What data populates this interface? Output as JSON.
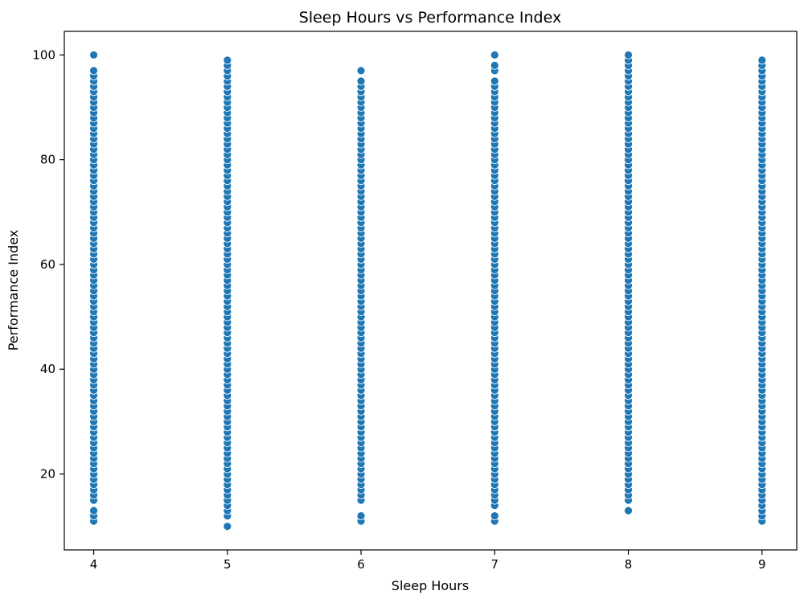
{
  "colors": {
    "marker": "#1f77b4",
    "marker_edge": "#ffffff"
  },
  "chart_data": {
    "type": "scatter",
    "title": "Sleep Hours vs Performance Index",
    "xlabel": "Sleep Hours",
    "ylabel": "Performance Index",
    "xlim": [
      3.78,
      9.26
    ],
    "ylim": [
      5.5,
      104.5
    ],
    "xticks": [
      4,
      5,
      6,
      7,
      8,
      9
    ],
    "xtick_labels": [
      "4",
      "5",
      "6",
      "7",
      "8",
      "9"
    ],
    "yticks": [
      20,
      40,
      60,
      80,
      100
    ],
    "ytick_labels": [
      "20",
      "40",
      "60",
      "80",
      "100"
    ],
    "grid": false,
    "legend": "none",
    "series": [
      {
        "x": 4,
        "y_values": [
          11,
          12,
          13,
          15,
          16,
          17,
          18,
          19,
          20,
          21,
          22,
          23,
          24,
          25,
          26,
          27,
          28,
          29,
          30,
          31,
          32,
          33,
          34,
          35,
          36,
          37,
          38,
          39,
          40,
          41,
          42,
          43,
          44,
          45,
          46,
          47,
          48,
          49,
          50,
          51,
          52,
          53,
          54,
          55,
          56,
          57,
          58,
          59,
          60,
          61,
          62,
          63,
          64,
          65,
          66,
          67,
          68,
          69,
          70,
          71,
          72,
          73,
          74,
          75,
          76,
          77,
          78,
          79,
          80,
          81,
          82,
          83,
          84,
          85,
          86,
          87,
          88,
          89,
          90,
          91,
          92,
          93,
          94,
          95,
          96,
          97,
          100
        ]
      },
      {
        "x": 5,
        "y_values": [
          10,
          12,
          13,
          14,
          15,
          16,
          17,
          18,
          19,
          20,
          21,
          22,
          23,
          24,
          25,
          26,
          27,
          28,
          29,
          30,
          31,
          32,
          33,
          34,
          35,
          36,
          37,
          38,
          39,
          40,
          41,
          42,
          43,
          44,
          45,
          46,
          47,
          48,
          49,
          50,
          51,
          52,
          53,
          54,
          55,
          56,
          57,
          58,
          59,
          60,
          61,
          62,
          63,
          64,
          65,
          66,
          67,
          68,
          69,
          70,
          71,
          72,
          73,
          74,
          75,
          76,
          77,
          78,
          79,
          80,
          81,
          82,
          83,
          84,
          85,
          86,
          87,
          88,
          89,
          90,
          91,
          92,
          93,
          94,
          95,
          96,
          97,
          98,
          99
        ]
      },
      {
        "x": 6,
        "y_values": [
          11,
          12,
          15,
          16,
          17,
          18,
          19,
          20,
          21,
          22,
          23,
          24,
          25,
          26,
          27,
          28,
          29,
          30,
          31,
          32,
          33,
          34,
          35,
          36,
          37,
          38,
          39,
          40,
          41,
          42,
          43,
          44,
          45,
          46,
          47,
          48,
          49,
          50,
          51,
          52,
          53,
          54,
          55,
          56,
          57,
          58,
          59,
          60,
          61,
          62,
          63,
          64,
          65,
          66,
          67,
          68,
          69,
          70,
          71,
          72,
          73,
          74,
          75,
          76,
          77,
          78,
          79,
          80,
          81,
          82,
          83,
          84,
          85,
          86,
          87,
          88,
          89,
          90,
          91,
          92,
          93,
          94,
          95,
          97
        ]
      },
      {
        "x": 7,
        "y_values": [
          11,
          12,
          14,
          15,
          16,
          17,
          18,
          19,
          20,
          21,
          22,
          23,
          24,
          25,
          26,
          27,
          28,
          29,
          30,
          31,
          32,
          33,
          34,
          35,
          36,
          37,
          38,
          39,
          40,
          41,
          42,
          43,
          44,
          45,
          46,
          47,
          48,
          49,
          50,
          51,
          52,
          53,
          54,
          55,
          56,
          57,
          58,
          59,
          60,
          61,
          62,
          63,
          64,
          65,
          66,
          67,
          68,
          69,
          70,
          71,
          72,
          73,
          74,
          75,
          76,
          77,
          78,
          79,
          80,
          81,
          82,
          83,
          84,
          85,
          86,
          87,
          88,
          89,
          90,
          91,
          92,
          93,
          94,
          95,
          97,
          98,
          100
        ]
      },
      {
        "x": 8,
        "y_values": [
          13,
          15,
          16,
          17,
          18,
          19,
          20,
          21,
          22,
          23,
          24,
          25,
          26,
          27,
          28,
          29,
          30,
          31,
          32,
          33,
          34,
          35,
          36,
          37,
          38,
          39,
          40,
          41,
          42,
          43,
          44,
          45,
          46,
          47,
          48,
          49,
          50,
          51,
          52,
          53,
          54,
          55,
          56,
          57,
          58,
          59,
          60,
          61,
          62,
          63,
          64,
          65,
          66,
          67,
          68,
          69,
          70,
          71,
          72,
          73,
          74,
          75,
          76,
          77,
          78,
          79,
          80,
          81,
          82,
          83,
          84,
          85,
          86,
          87,
          88,
          89,
          90,
          91,
          92,
          93,
          94,
          95,
          96,
          97,
          98,
          99,
          100
        ]
      },
      {
        "x": 9,
        "y_values": [
          11,
          12,
          13,
          14,
          15,
          16,
          17,
          18,
          19,
          20,
          21,
          22,
          23,
          24,
          25,
          26,
          27,
          28,
          29,
          30,
          31,
          32,
          33,
          34,
          35,
          36,
          37,
          38,
          39,
          40,
          41,
          42,
          43,
          44,
          45,
          46,
          47,
          48,
          49,
          50,
          51,
          52,
          53,
          54,
          55,
          56,
          57,
          58,
          59,
          60,
          61,
          62,
          63,
          64,
          65,
          66,
          67,
          68,
          69,
          70,
          71,
          72,
          73,
          74,
          75,
          76,
          77,
          78,
          79,
          80,
          81,
          82,
          83,
          84,
          85,
          86,
          87,
          88,
          89,
          90,
          91,
          92,
          93,
          94,
          95,
          96,
          97,
          98,
          99
        ]
      }
    ]
  }
}
